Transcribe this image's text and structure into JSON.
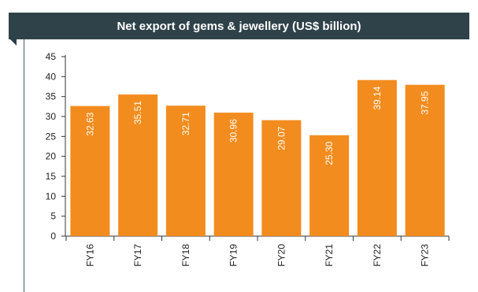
{
  "chart_data": {
    "type": "bar",
    "title": "Net export of gems & jewellery (US$ billion)",
    "categories": [
      "FY16",
      "FY17",
      "FY18",
      "FY19",
      "FY20",
      "FY21",
      "FY22",
      "FY23"
    ],
    "values": [
      32.63,
      35.51,
      32.71,
      30.96,
      29.07,
      25.3,
      39.14,
      37.95
    ],
    "value_labels": [
      "32.63",
      "35.51",
      "32.71",
      "30.96",
      "29.07",
      "25.30",
      "39.14",
      "37.95"
    ],
    "yticks": [
      "0",
      "5",
      "10",
      "15",
      "20",
      "25",
      "30",
      "35",
      "40",
      "45"
    ],
    "ylim": [
      0,
      45
    ],
    "xlabel": "",
    "ylabel": "",
    "grid": false,
    "bar_color": "#f28c1e",
    "title_bg": "#2f4249"
  }
}
